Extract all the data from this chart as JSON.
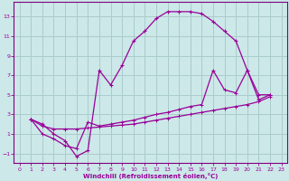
{
  "xlabel": "Windchill (Refroidissement éolien,°C)",
  "bg_color": "#cce8e8",
  "grid_color": "#aacccc",
  "line_color": "#990099",
  "spine_color": "#800080",
  "xlim": [
    -0.5,
    23.5
  ],
  "ylim": [
    -2.0,
    14.5
  ],
  "xticks": [
    0,
    1,
    2,
    3,
    4,
    5,
    6,
    7,
    8,
    9,
    10,
    11,
    12,
    13,
    14,
    15,
    16,
    17,
    18,
    19,
    20,
    21,
    22,
    23
  ],
  "yticks": [
    -1,
    1,
    3,
    5,
    7,
    9,
    11,
    13
  ],
  "line1_x": [
    1,
    2,
    3,
    4,
    5,
    6,
    7,
    8,
    9,
    10,
    11,
    12,
    13,
    14,
    15,
    16,
    17,
    18,
    19,
    20,
    21,
    22
  ],
  "line1_y": [
    2.5,
    2.0,
    1.0,
    0.3,
    -1.3,
    -0.7,
    7.5,
    6.0,
    8.0,
    10.5,
    11.5,
    12.8,
    13.5,
    13.5,
    13.5,
    13.3,
    12.5,
    11.5,
    10.5,
    7.5,
    5.0,
    5.0
  ],
  "line2_x": [
    1,
    2,
    3,
    4,
    5,
    6,
    7,
    8,
    9,
    10,
    11,
    12,
    13,
    14,
    15,
    16,
    17,
    18,
    19,
    20,
    21,
    22
  ],
  "line2_y": [
    2.5,
    1.0,
    0.5,
    -0.2,
    -0.5,
    2.2,
    1.8,
    2.0,
    2.2,
    2.4,
    2.7,
    3.0,
    3.2,
    3.5,
    3.8,
    4.0,
    7.5,
    5.5,
    5.2,
    7.5,
    4.5,
    5.0
  ],
  "line3_x": [
    1,
    2,
    3,
    4,
    5,
    6,
    7,
    8,
    9,
    10,
    11,
    12,
    13,
    14,
    15,
    16,
    17,
    18,
    19,
    20,
    21,
    22
  ],
  "line3_y": [
    2.5,
    1.8,
    1.5,
    1.5,
    1.5,
    1.6,
    1.7,
    1.8,
    1.9,
    2.0,
    2.2,
    2.4,
    2.6,
    2.8,
    3.0,
    3.2,
    3.4,
    3.6,
    3.8,
    4.0,
    4.3,
    4.8
  ]
}
